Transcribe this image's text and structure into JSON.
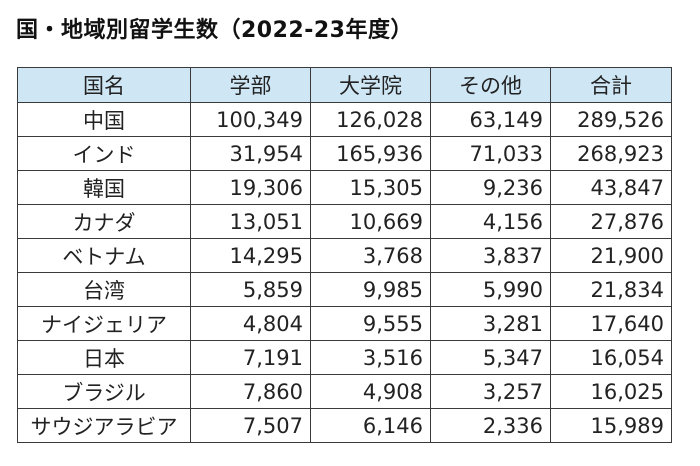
{
  "title": "国・地域別留学生数（2022-23年度）",
  "table": {
    "headers": [
      "国名",
      "学部",
      "大学院",
      "その他",
      "合計"
    ],
    "rows": [
      {
        "name": "中国",
        "values": [
          "100,349",
          "126,028",
          "63,149",
          "289,526"
        ]
      },
      {
        "name": "インド",
        "values": [
          "31,954",
          "165,936",
          "71,033",
          "268,923"
        ]
      },
      {
        "name": "韓国",
        "values": [
          "19,306",
          "15,305",
          "9,236",
          "43,847"
        ]
      },
      {
        "name": "カナダ",
        "values": [
          "13,051",
          "10,669",
          "4,156",
          "27,876"
        ]
      },
      {
        "name": "ベトナム",
        "values": [
          "14,295",
          "3,768",
          "3,837",
          "21,900"
        ]
      },
      {
        "name": "台湾",
        "values": [
          "5,859",
          "9,985",
          "5,990",
          "21,834"
        ]
      },
      {
        "name": "ナイジェリア",
        "values": [
          "4,804",
          "9,555",
          "3,281",
          "17,640"
        ]
      },
      {
        "name": "日本",
        "values": [
          "7,191",
          "3,516",
          "5,347",
          "16,054"
        ]
      },
      {
        "name": "ブラジル",
        "values": [
          "7,860",
          "4,908",
          "3,257",
          "16,025"
        ]
      },
      {
        "name": "サウジアラビア",
        "values": [
          "7,507",
          "6,146",
          "2,336",
          "15,989"
        ]
      }
    ]
  },
  "colors": {
    "header_background": "#cfe6f5",
    "border": "#3a3a3a",
    "text": "#222222"
  }
}
